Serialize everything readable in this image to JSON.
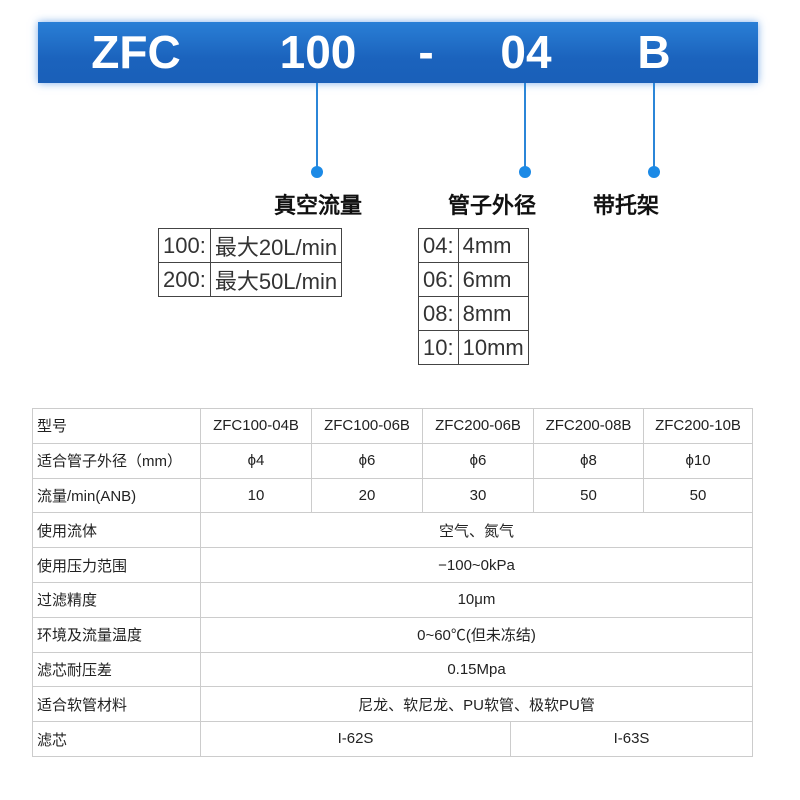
{
  "banner": {
    "parts": [
      "ZFC",
      "100",
      "-",
      "04",
      "B"
    ],
    "color": "#1b63bd"
  },
  "labels": {
    "flow": "真空流量",
    "tube": "管子外径",
    "bracket": "带托架"
  },
  "flow_options": [
    {
      "code": "100:",
      "desc": "最大20L/min"
    },
    {
      "code": "200:",
      "desc": "最大50L/min"
    }
  ],
  "tube_options": [
    {
      "code": "04:",
      "desc": "4mm"
    },
    {
      "code": "06:",
      "desc": "6mm"
    },
    {
      "code": "08:",
      "desc": "8mm"
    },
    {
      "code": "10:",
      "desc": "10mm"
    }
  ],
  "spec": {
    "models_label": "型号",
    "models": [
      "ZFC100-04B",
      "ZFC100-06B",
      "ZFC200-06B",
      "ZFC200-08B",
      "ZFC200-10B"
    ],
    "tube_label": "适合管子外径（mm）",
    "tube": [
      "ϕ4",
      "ϕ6",
      "ϕ6",
      "ϕ8",
      "ϕ10"
    ],
    "flow_label": "流量/min(ANB)",
    "flow": [
      "10",
      "20",
      "30",
      "50",
      "50"
    ],
    "rows": [
      {
        "label": "使用流体",
        "value": "空气、氮气"
      },
      {
        "label": "使用压力范围",
        "value": "−100~0kPa"
      },
      {
        "label": "过滤精度",
        "value": "10μm"
      },
      {
        "label": "环境及流量温度",
        "value": "0~60℃(但未冻结)"
      },
      {
        "label": "滤芯耐压差",
        "value": "0.15Mpa"
      },
      {
        "label": "适合软管材料",
        "value": "尼龙、软尼龙、PU软管、极软PU管"
      }
    ],
    "filter_label": "滤芯",
    "filter": [
      "I-62S",
      "I-63S"
    ]
  }
}
